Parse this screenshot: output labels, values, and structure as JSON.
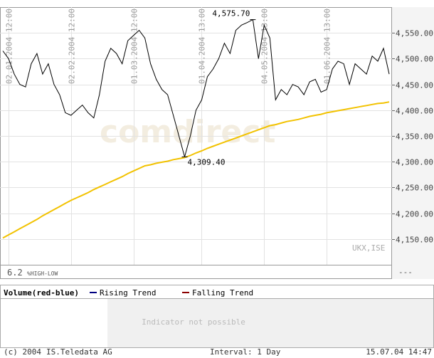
{
  "chart_data": {
    "type": "line",
    "xlim": [
      -0.5,
      68.5
    ],
    "xticks": [
      {
        "value": 1,
        "label": "02.01.2004 12:00"
      },
      {
        "value": 12,
        "label": "02.02.2004 12:00"
      },
      {
        "value": 23,
        "label": "01.03.2004 12:00"
      },
      {
        "value": 35,
        "label": "01.04.2004 13:00"
      },
      {
        "value": 46,
        "label": "04.05.2004 13:00"
      },
      {
        "value": 57,
        "label": "01.06.2004 13:00"
      }
    ],
    "ylim": [
      4100,
      4600
    ],
    "yticks": [
      {
        "value": 4150,
        "label": "4,150.00"
      },
      {
        "value": 4200,
        "label": "4,200.00"
      },
      {
        "value": 4250,
        "label": "4,250.00"
      },
      {
        "value": 4300,
        "label": "4,300.00"
      },
      {
        "value": 4350,
        "label": "4,350.00"
      },
      {
        "value": 4400,
        "label": "4,400.00"
      },
      {
        "value": 4450,
        "label": "4,450.00"
      },
      {
        "value": 4500,
        "label": "4,500.00"
      },
      {
        "value": 4550,
        "label": "4,550.00"
      }
    ],
    "grid": true,
    "series": [
      {
        "color": "#000000",
        "values": [
          4515,
          4500,
          4470,
          4450,
          4445,
          4490,
          4510,
          4470,
          4490,
          4450,
          4430,
          4395,
          4390,
          4400,
          4410,
          4395,
          4385,
          4430,
          4495,
          4520,
          4510,
          4490,
          4535,
          4545,
          4555,
          4540,
          4490,
          4460,
          4440,
          4430,
          4390,
          4350,
          4309.4,
          4350,
          4400,
          4420,
          4465,
          4480,
          4500,
          4530,
          4510,
          4555,
          4565,
          4570,
          4575.7,
          4500,
          4565,
          4540,
          4420,
          4440,
          4430,
          4450,
          4445,
          4430,
          4455,
          4460,
          4435,
          4440,
          4480,
          4495,
          4490,
          4450,
          4490,
          4480,
          4470,
          4505,
          4495,
          4520,
          4470
        ]
      },
      {
        "color": "#f2c200",
        "values": [
          4152,
          4158,
          4164,
          4170,
          4176,
          4182,
          4188,
          4195,
          4201,
          4207,
          4213,
          4219,
          4225,
          4230,
          4235,
          4240,
          4246,
          4251,
          4256,
          4261,
          4266,
          4271,
          4277,
          4282,
          4287,
          4292,
          4294,
          4297,
          4299,
          4301,
          4304,
          4306,
          4308,
          4312,
          4317,
          4321,
          4326,
          4330,
          4334,
          4338,
          4342,
          4346,
          4350,
          4354,
          4358,
          4362,
          4366,
          4370,
          4372,
          4375,
          4378,
          4380,
          4382,
          4385,
          4388,
          4390,
          4392,
          4395,
          4397,
          4399,
          4401,
          4403,
          4405,
          4407,
          4409,
          4411,
          4413,
          4414,
          4416
        ]
      }
    ],
    "annotations": [
      {
        "index": 44,
        "value": 4575.7,
        "label": "4,575.70"
      },
      {
        "index": 32,
        "value": 4309.4,
        "label": "4,309.40"
      }
    ],
    "watermark": "comdirect",
    "symbol": "UKX,ISE",
    "range_value": "6.2",
    "range_label": "%HIGH-LOW",
    "scale_mark": "---",
    "indicator_panel": {
      "title": "Volume(red-blue)",
      "legend": [
        {
          "name": "Rising Trend",
          "color": "#000080"
        },
        {
          "name": "Falling Trend",
          "color": "#8b0000"
        }
      ],
      "message": "Indicator not possible"
    },
    "footer": {
      "copyright": "(c) 2004",
      "provider": "IS.Teledata AG",
      "interval": "Interval: 1 Day",
      "timestamp": "15.07.04 14:47"
    }
  }
}
